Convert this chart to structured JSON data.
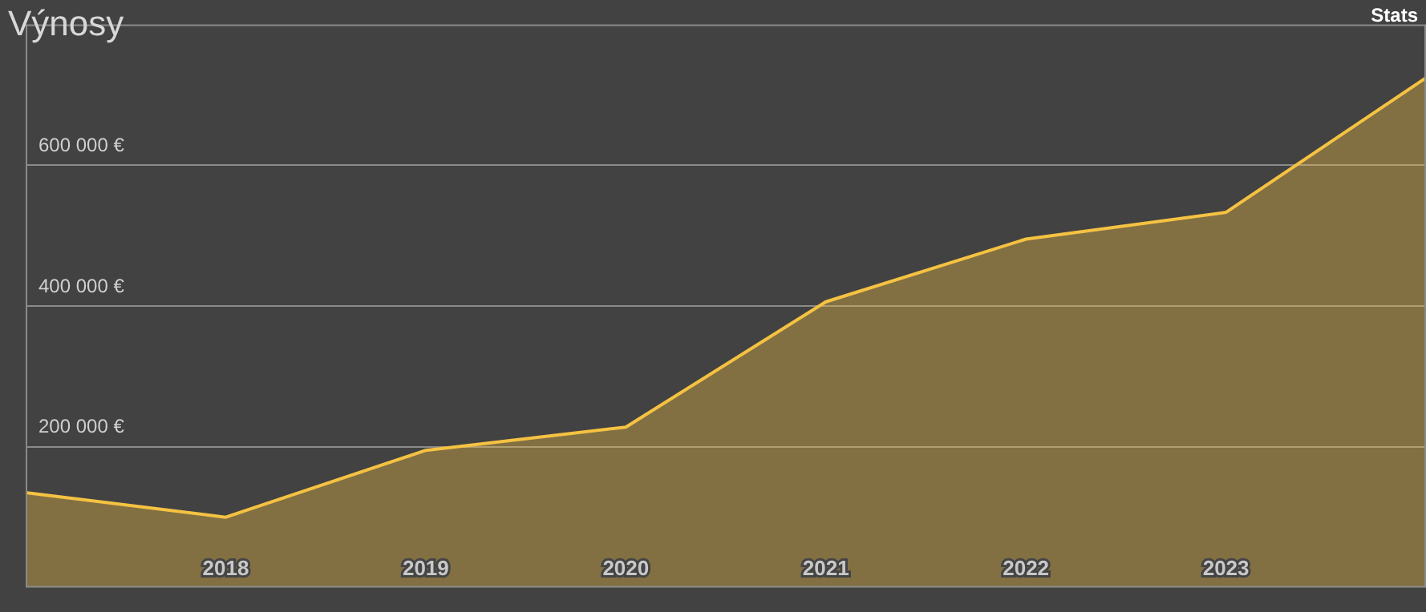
{
  "chart_data": {
    "type": "area",
    "title": "Výnosy",
    "annotations": [
      "Stats"
    ],
    "categories": [
      null,
      "2018",
      "2019",
      "2020",
      "2021",
      "2022",
      "2023",
      null
    ],
    "series": [
      {
        "color": "#f5c242",
        "values": [
          135000,
          100000,
          195000,
          228000,
          406000,
          495000,
          533000,
          724000
        ]
      }
    ],
    "ylim": [
      0,
      800000
    ],
    "yticks": [
      {
        "value": 200000,
        "label": "200 000 €"
      },
      {
        "value": 400000,
        "label": "400 000 €"
      },
      {
        "value": 600000,
        "label": "600 000 €"
      }
    ],
    "grid": "y",
    "legend": false,
    "marker": "none"
  }
}
